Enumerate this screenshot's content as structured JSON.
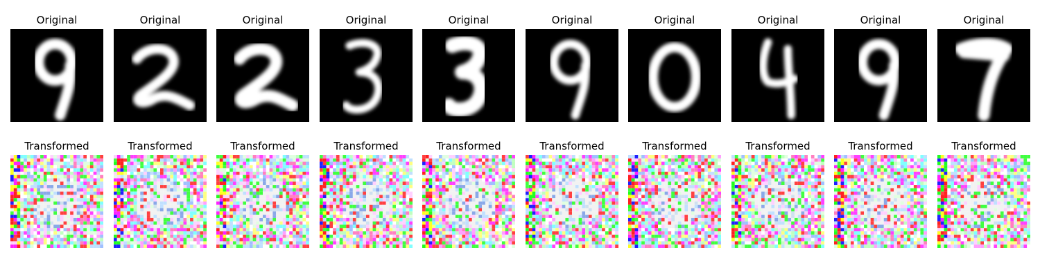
{
  "row_top": {
    "title": "Original",
    "digits": [
      "9",
      "2",
      "2",
      "3",
      "3",
      "9",
      "0",
      "4",
      "9",
      "7"
    ]
  },
  "row_bottom": {
    "title": "Transformed"
  }
}
